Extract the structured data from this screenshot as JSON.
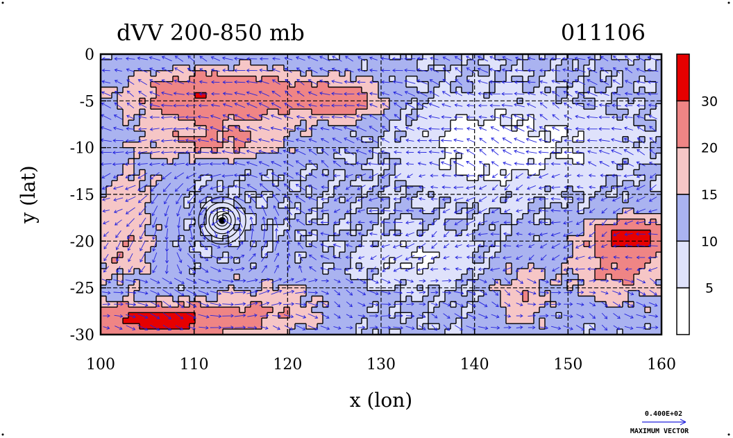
{
  "chart_data": {
    "type": "heatmap",
    "title": "dVV 200-850 mb",
    "date_label": "011106",
    "xlabel": "x (lon)",
    "ylabel": "y (lat)",
    "xlim": [
      100,
      160
    ],
    "ylim": [
      -30,
      0
    ],
    "x_ticks": [
      "100",
      "110",
      "120",
      "130",
      "140",
      "150",
      "160"
    ],
    "y_ticks": [
      "0",
      "-5",
      "-10",
      "-15",
      "-20",
      "-25",
      "-30"
    ],
    "grid": true,
    "colorbar": {
      "levels": [
        0,
        5,
        10,
        15,
        20,
        30,
        40
      ],
      "tick_labels": [
        "5",
        "10",
        "15",
        "20",
        "30"
      ],
      "colors": [
        "#ffffff",
        "#dfe2fb",
        "#aab3f0",
        "#f6c6c6",
        "#ef8585",
        "#e60000"
      ]
    },
    "vector_reference": {
      "value": "0.400E+02",
      "label": "MAXIMUM VECTOR",
      "color": "#2222dd"
    },
    "contour_color": "#000000",
    "line_color": "#000000"
  }
}
